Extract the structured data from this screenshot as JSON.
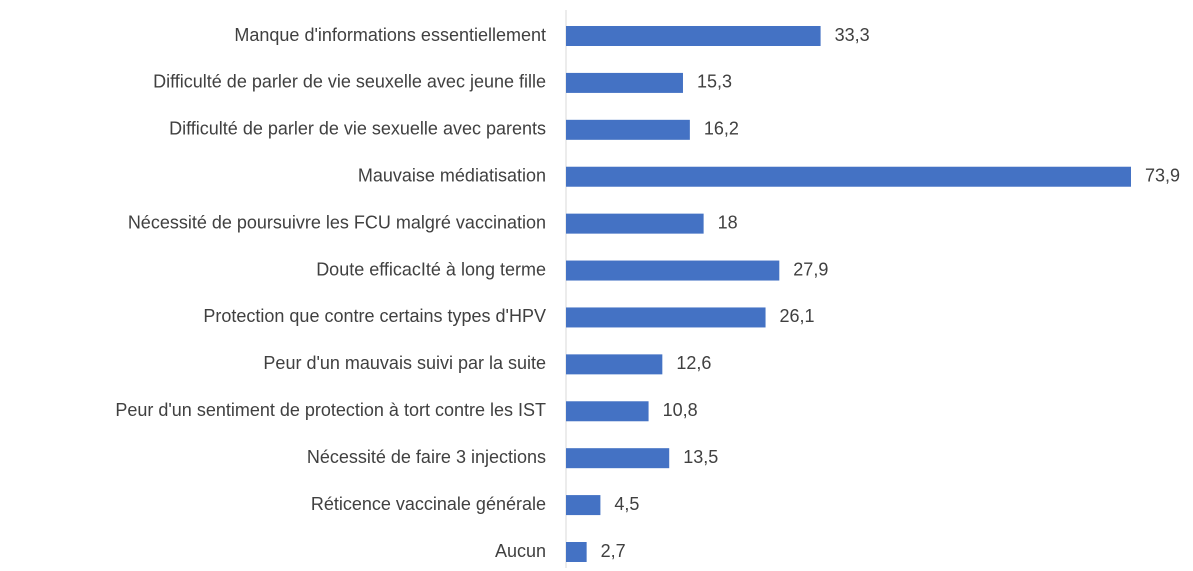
{
  "chart_data": {
    "type": "barh",
    "categories": [
      "Manque d'informations essentiellement",
      "Difficulté de parler de vie seuxelle avec jeune fille",
      "Difficulté de parler de vie sexuelle avec parents",
      "Mauvaise médiatisation",
      "Nécessité de poursuivre les FCU malgré vaccination",
      "Doute efficacIté à long terme",
      "Protection que contre certains types d'HPV",
      "Peur d'un mauvais suivi par la suite",
      "Peur d'un sentiment de protection à tort contre les IST",
      "Nécessité de faire 3 injections",
      "Réticence vaccinale générale",
      "Aucun"
    ],
    "values": [
      33.3,
      15.3,
      16.2,
      73.9,
      18,
      27.9,
      26.1,
      12.6,
      10.8,
      13.5,
      4.5,
      2.7
    ],
    "value_labels": [
      "33,3",
      "15,3",
      "16,2",
      "73,9",
      "18",
      "27,9",
      "26,1",
      "12,6",
      "10,8",
      "13,5",
      "4,5",
      "2,7"
    ],
    "color": "#4472c4"
  }
}
